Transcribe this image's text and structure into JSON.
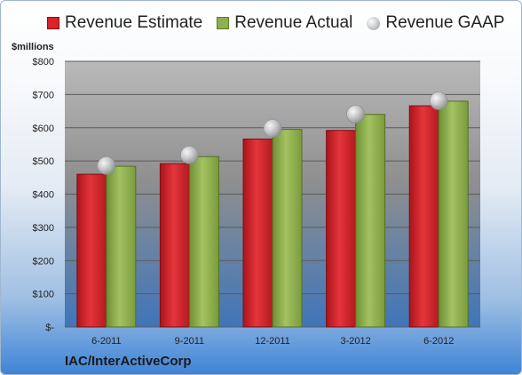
{
  "chart_data": {
    "type": "bar",
    "categories": [
      "6-2011",
      "9-2011",
      "12-2011",
      "3-2012",
      "6-2012"
    ],
    "series": [
      {
        "name": "Revenue Estimate",
        "kind": "bar",
        "color": "#d8232a",
        "values": [
          460,
          492,
          566,
          592,
          666
        ]
      },
      {
        "name": "Revenue Actual",
        "kind": "bar",
        "color": "#8fb04e",
        "values": [
          484,
          513,
          595,
          640,
          680
        ]
      },
      {
        "name": "Revenue GAAP",
        "kind": "marker",
        "color": "#c6c8cc",
        "values": [
          486,
          518,
          598,
          641,
          681
        ]
      }
    ],
    "ylabel": "$millions",
    "ylim": [
      0,
      800
    ],
    "yticks": [
      0,
      100,
      200,
      300,
      400,
      500,
      600,
      700,
      800
    ],
    "ytick_labels": [
      "$-",
      "$100",
      "$200",
      "$300",
      "$400",
      "$500",
      "$600",
      "$700",
      "$800"
    ],
    "grid": true,
    "legend_position": "top",
    "company": "IAC/InterActiveCorp"
  }
}
